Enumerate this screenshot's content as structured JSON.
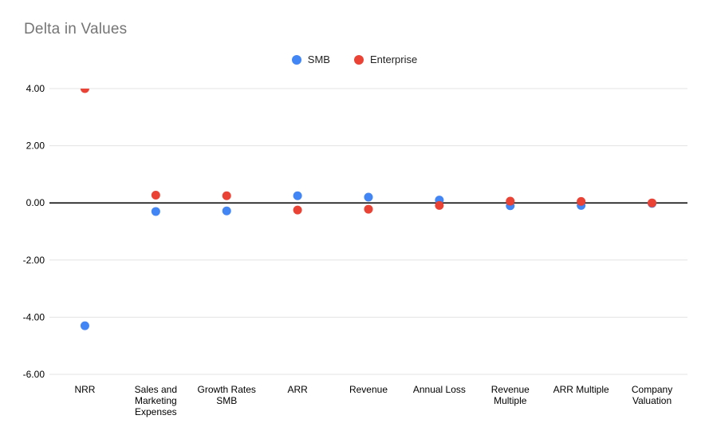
{
  "chart_data": {
    "type": "scatter",
    "title": "Delta in Values",
    "categories": [
      "NRR",
      "Sales and Marketing Expenses",
      "Growth Rates SMB",
      "ARR",
      "Revenue",
      "Annual Loss",
      "Revenue Multiple",
      "ARR Multiple",
      "Company Valuation"
    ],
    "category_lines": [
      [
        "NRR"
      ],
      [
        "Sales and",
        "Marketing",
        "Expenses"
      ],
      [
        "Growth Rates",
        "SMB"
      ],
      [
        "ARR"
      ],
      [
        "Revenue"
      ],
      [
        "Annual Loss"
      ],
      [
        "Revenue",
        "Multiple"
      ],
      [
        "ARR Multiple"
      ],
      [
        "Company",
        "Valuation"
      ]
    ],
    "series": [
      {
        "name": "SMB",
        "color": "#4285F4",
        "values": [
          -4.3,
          -0.3,
          -0.28,
          0.25,
          0.2,
          0.1,
          -0.1,
          -0.09,
          -0.02
        ]
      },
      {
        "name": "Enterprise",
        "color": "#EA4335",
        "values": [
          4.0,
          0.27,
          0.25,
          -0.25,
          -0.22,
          -0.09,
          0.06,
          0.05,
          0.0
        ]
      }
    ],
    "xlabel": "",
    "ylabel": "",
    "ylim": [
      -6,
      4
    ],
    "yticks": [
      4,
      2,
      0,
      -2,
      -4,
      -6
    ],
    "ytick_labels": [
      "4.00",
      "2.00",
      "0.00",
      "-2.00",
      "-4.00",
      "-6.00"
    ],
    "grid": true,
    "legend_position": "top-center",
    "colors": {
      "grid": "#E3E3E3",
      "zero_line": "#000000",
      "title": "#757575",
      "axis_text": "#000000",
      "background": "#FFFFFF"
    }
  }
}
